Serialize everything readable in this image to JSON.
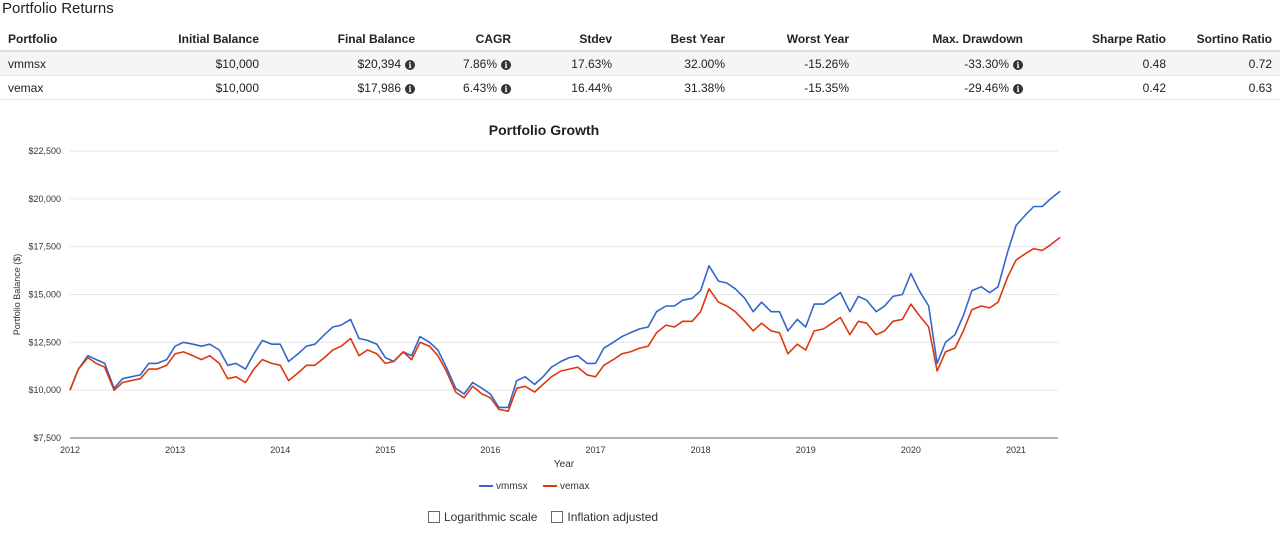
{
  "section_title": "Portfolio Returns",
  "table": {
    "headers": [
      "Portfolio",
      "Initial Balance",
      "Final Balance",
      "CAGR",
      "Stdev",
      "Best Year",
      "Worst Year",
      "Max. Drawdown",
      "Sharpe Ratio",
      "Sortino Ratio"
    ],
    "rows": [
      [
        "vmmsx",
        "$10,000",
        "$20,394",
        "7.86%",
        "17.63%",
        "32.00%",
        "-15.26%",
        "-33.30%",
        "0.48",
        "0.72"
      ],
      [
        "vemax",
        "$10,000",
        "$17,986",
        "6.43%",
        "16.44%",
        "31.38%",
        "-15.35%",
        "-29.46%",
        "0.42",
        "0.63"
      ]
    ],
    "info_icon": "info-circle-icon"
  },
  "chart_data": {
    "type": "line",
    "title": "Portfolio Growth",
    "xlabel": "Year",
    "ylabel": "Portfolio Balance ($)",
    "xlim": [
      2012,
      2021.4
    ],
    "ylim": [
      7500,
      22500
    ],
    "y_ticks": [
      7500,
      10000,
      12500,
      15000,
      17500,
      20000,
      22500
    ],
    "y_tick_labels": [
      "$7,500",
      "$10,000",
      "$12,500",
      "$15,000",
      "$17,500",
      "$20,000",
      "$22,500"
    ],
    "x_ticks": [
      2012,
      2013,
      2014,
      2015,
      2016,
      2017,
      2018,
      2019,
      2020,
      2021
    ],
    "x_tick_labels": [
      "2012",
      "2013",
      "2014",
      "2015",
      "2016",
      "2017",
      "2018",
      "2019",
      "2020",
      "2021"
    ],
    "grid": true,
    "legend_position": "bottom",
    "series": [
      {
        "name": "vmmsx",
        "color": "#3366cc",
        "x": [
          2012.0,
          2012.08,
          2012.17,
          2012.25,
          2012.33,
          2012.42,
          2012.5,
          2012.58,
          2012.67,
          2012.75,
          2012.83,
          2012.92,
          2013.0,
          2013.08,
          2013.17,
          2013.25,
          2013.33,
          2013.42,
          2013.5,
          2013.58,
          2013.67,
          2013.75,
          2013.83,
          2013.92,
          2014.0,
          2014.08,
          2014.17,
          2014.25,
          2014.33,
          2014.42,
          2014.5,
          2014.58,
          2014.67,
          2014.75,
          2014.83,
          2014.92,
          2015.0,
          2015.08,
          2015.17,
          2015.25,
          2015.33,
          2015.42,
          2015.5,
          2015.58,
          2015.67,
          2015.75,
          2015.83,
          2015.92,
          2016.0,
          2016.08,
          2016.17,
          2016.25,
          2016.33,
          2016.42,
          2016.5,
          2016.58,
          2016.67,
          2016.75,
          2016.83,
          2016.92,
          2017.0,
          2017.08,
          2017.17,
          2017.25,
          2017.33,
          2017.42,
          2017.5,
          2017.58,
          2017.67,
          2017.75,
          2017.83,
          2017.92,
          2018.0,
          2018.08,
          2018.17,
          2018.25,
          2018.33,
          2018.42,
          2018.5,
          2018.58,
          2018.67,
          2018.75,
          2018.83,
          2018.92,
          2019.0,
          2019.08,
          2019.17,
          2019.25,
          2019.33,
          2019.42,
          2019.5,
          2019.58,
          2019.67,
          2019.75,
          2019.83,
          2019.92,
          2020.0,
          2020.08,
          2020.17,
          2020.25,
          2020.33,
          2020.42,
          2020.5,
          2020.58,
          2020.67,
          2020.75,
          2020.83,
          2020.92,
          2021.0,
          2021.08,
          2021.17,
          2021.25,
          2021.33,
          2021.42
        ],
        "values": [
          10000,
          11100,
          11800,
          11600,
          11400,
          10100,
          10600,
          10700,
          10800,
          11400,
          11400,
          11600,
          12300,
          12500,
          12400,
          12300,
          12400,
          12100,
          11300,
          11400,
          11100,
          11900,
          12600,
          12400,
          12400,
          11500,
          11900,
          12300,
          12400,
          12900,
          13300,
          13400,
          13700,
          12700,
          12600,
          12400,
          11700,
          11500,
          12000,
          11800,
          12800,
          12500,
          12100,
          11200,
          10100,
          9800,
          10400,
          10100,
          9800,
          9100,
          9100,
          10500,
          10700,
          10300,
          10700,
          11200,
          11500,
          11700,
          11800,
          11400,
          11400,
          12200,
          12500,
          12800,
          13000,
          13200,
          13300,
          14100,
          14400,
          14400,
          14700,
          14800,
          15200,
          16500,
          15700,
          15600,
          15300,
          14800,
          14100,
          14600,
          14100,
          14100,
          13100,
          13700,
          13300,
          14500,
          14500,
          14800,
          15100,
          14100,
          14900,
          14700,
          14100,
          14400,
          14900,
          15000,
          16100,
          15200,
          14400,
          11400,
          12500,
          12900,
          13900,
          15200,
          15400,
          15100,
          15400,
          17200,
          18600,
          19100,
          19600,
          19600,
          20000,
          20394
        ]
      },
      {
        "name": "vemax",
        "color": "#dc3912",
        "x": [
          2012.0,
          2012.08,
          2012.17,
          2012.25,
          2012.33,
          2012.42,
          2012.5,
          2012.58,
          2012.67,
          2012.75,
          2012.83,
          2012.92,
          2013.0,
          2013.08,
          2013.17,
          2013.25,
          2013.33,
          2013.42,
          2013.5,
          2013.58,
          2013.67,
          2013.75,
          2013.83,
          2013.92,
          2014.0,
          2014.08,
          2014.17,
          2014.25,
          2014.33,
          2014.42,
          2014.5,
          2014.58,
          2014.67,
          2014.75,
          2014.83,
          2014.92,
          2015.0,
          2015.08,
          2015.17,
          2015.25,
          2015.33,
          2015.42,
          2015.5,
          2015.58,
          2015.67,
          2015.75,
          2015.83,
          2015.92,
          2016.0,
          2016.08,
          2016.17,
          2016.25,
          2016.33,
          2016.42,
          2016.5,
          2016.58,
          2016.67,
          2016.75,
          2016.83,
          2016.92,
          2017.0,
          2017.08,
          2017.17,
          2017.25,
          2017.33,
          2017.42,
          2017.5,
          2017.58,
          2017.67,
          2017.75,
          2017.83,
          2017.92,
          2018.0,
          2018.08,
          2018.17,
          2018.25,
          2018.33,
          2018.42,
          2018.5,
          2018.58,
          2018.67,
          2018.75,
          2018.83,
          2018.92,
          2019.0,
          2019.08,
          2019.17,
          2019.25,
          2019.33,
          2019.42,
          2019.5,
          2019.58,
          2019.67,
          2019.75,
          2019.83,
          2019.92,
          2020.0,
          2020.08,
          2020.17,
          2020.25,
          2020.33,
          2020.42,
          2020.5,
          2020.58,
          2020.67,
          2020.75,
          2020.83,
          2020.92,
          2021.0,
          2021.08,
          2021.17,
          2021.25,
          2021.33,
          2021.42
        ],
        "values": [
          10000,
          11100,
          11700,
          11400,
          11200,
          10000,
          10400,
          10500,
          10600,
          11100,
          11100,
          11300,
          11900,
          12000,
          11800,
          11600,
          11800,
          11400,
          10600,
          10700,
          10400,
          11100,
          11600,
          11400,
          11300,
          10500,
          10900,
          11300,
          11300,
          11700,
          12100,
          12300,
          12700,
          11800,
          12100,
          11900,
          11400,
          11500,
          12000,
          11600,
          12500,
          12300,
          11800,
          11000,
          9900,
          9600,
          10200,
          9800,
          9600,
          9000,
          8900,
          10100,
          10200,
          9900,
          10300,
          10700,
          11000,
          11100,
          11200,
          10800,
          10700,
          11300,
          11600,
          11900,
          12000,
          12200,
          12300,
          13000,
          13400,
          13300,
          13600,
          13600,
          14100,
          15300,
          14600,
          14400,
          14100,
          13600,
          13100,
          13500,
          13100,
          13000,
          11900,
          12400,
          12100,
          13100,
          13200,
          13500,
          13800,
          12900,
          13600,
          13500,
          12900,
          13100,
          13600,
          13700,
          14500,
          13900,
          13300,
          11000,
          12000,
          12200,
          13100,
          14200,
          14400,
          14300,
          14600,
          15900,
          16800,
          17100,
          17400,
          17300,
          17600,
          17986
        ]
      }
    ]
  },
  "options": {
    "log_label": "Logarithmic scale",
    "inflation_label": "Inflation adjusted"
  }
}
